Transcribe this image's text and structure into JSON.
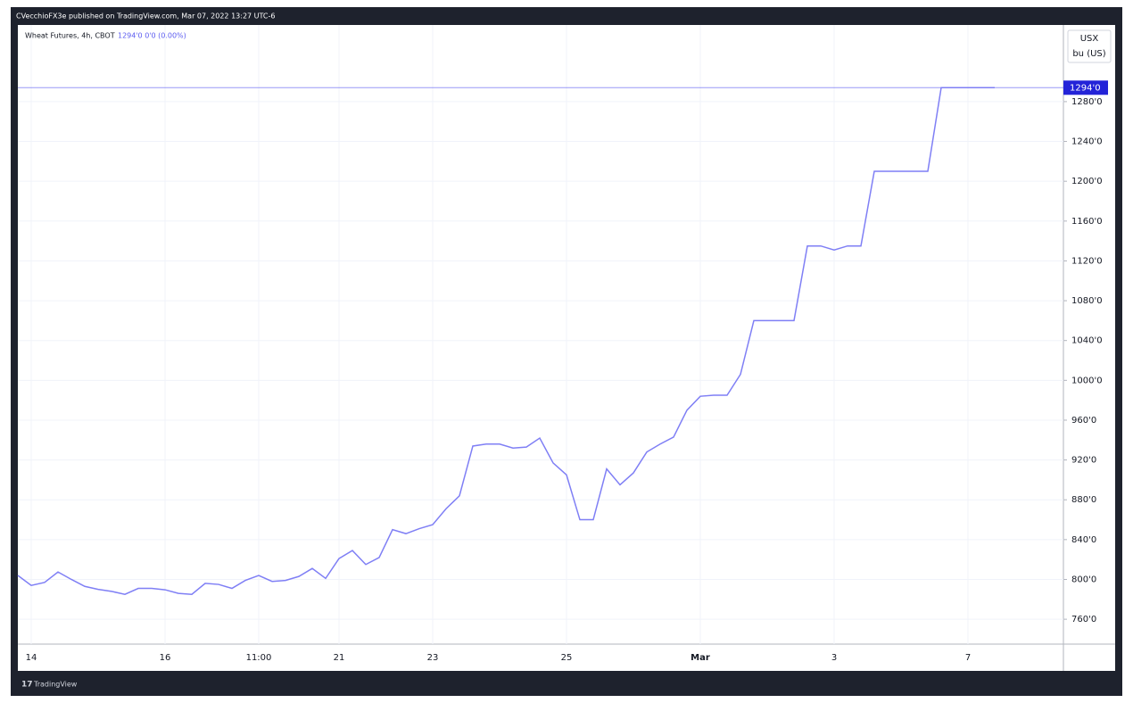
{
  "header": {
    "publisher_note": "CVecchioFX3e published on TradingView.com, Mar 07, 2022 13:27 UTC-6"
  },
  "footer": {
    "brand": "TradingView"
  },
  "chart_data": {
    "type": "line",
    "title": "Wheat Futures, 4h, CBOT",
    "legend_values": "1294'0 0'0 (0.00%)",
    "axis_unit": [
      "USX",
      "bu (US)"
    ],
    "color": "#7f7ff5",
    "grid": true,
    "categories": [
      null,
      "14",
      null,
      null,
      null,
      null,
      null,
      null,
      null,
      null,
      null,
      "16",
      null,
      null,
      null,
      null,
      null,
      null,
      "11:00",
      null,
      null,
      null,
      null,
      null,
      "21",
      null,
      null,
      null,
      null,
      null,
      null,
      "23",
      null,
      null,
      null,
      null,
      null,
      null,
      null,
      null,
      null,
      "25",
      null,
      null,
      null,
      null,
      null,
      null,
      null,
      null,
      null,
      "Mar",
      null,
      null,
      null,
      null,
      null,
      null,
      null,
      null,
      null,
      "3",
      null,
      null,
      null,
      null,
      null,
      null,
      null,
      null,
      null,
      "7",
      null,
      null
    ],
    "values": [
      804,
      794,
      797,
      807.5,
      800,
      793,
      790,
      788,
      785,
      791,
      791,
      789.6,
      786,
      785,
      796,
      795,
      791,
      799,
      804,
      798,
      799,
      803,
      811,
      801,
      821,
      829,
      815,
      822,
      850,
      846,
      851,
      855,
      871,
      884,
      934,
      936,
      936,
      932,
      933,
      942,
      917,
      905,
      860,
      860,
      911,
      895,
      907,
      928,
      936,
      943,
      970,
      984,
      985,
      985,
      1006,
      1060,
      1060,
      1060,
      1060,
      1135,
      1135,
      1131,
      1135,
      1135,
      1210,
      1210,
      1210,
      1210,
      1210,
      1294,
      1294,
      1294,
      1294,
      1294
    ],
    "ylim": [
      735,
      1357
    ],
    "yticks": [
      {
        "value": 760,
        "label": "760'0"
      },
      {
        "value": 800,
        "label": "800'0"
      },
      {
        "value": 840,
        "label": "840'0"
      },
      {
        "value": 880,
        "label": "880'0"
      },
      {
        "value": 920,
        "label": "920'0"
      },
      {
        "value": 960,
        "label": "960'0"
      },
      {
        "value": 1000,
        "label": "1000'0"
      },
      {
        "value": 1040,
        "label": "1040'0"
      },
      {
        "value": 1080,
        "label": "1080'0"
      },
      {
        "value": 1120,
        "label": "1120'0"
      },
      {
        "value": 1160,
        "label": "1160'0"
      },
      {
        "value": 1200,
        "label": "1200'0"
      },
      {
        "value": 1240,
        "label": "1240'0"
      },
      {
        "value": 1280,
        "label": "1280'0"
      }
    ],
    "last_price": {
      "value": 1294,
      "label": "1294'0",
      "color": "#2323d8"
    }
  }
}
